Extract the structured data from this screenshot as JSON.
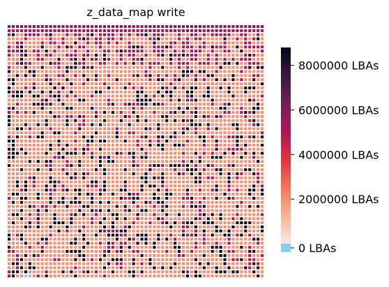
{
  "chart_data": {
    "type": "heatmap",
    "title": "z_data_map write",
    "grid": {
      "rows": 62,
      "cols": 62
    },
    "colorbar": {
      "ticks": [
        {
          "value": 8000000,
          "label": "8000000 LBAs"
        },
        {
          "value": 6000000,
          "label": "6000000 LBAs"
        },
        {
          "value": 4000000,
          "label": "4000000 LBAs"
        },
        {
          "value": 2000000,
          "label": "2000000 LBAs"
        },
        {
          "value": 0,
          "label": "0 LBAs"
        }
      ],
      "range": [
        0,
        8800000
      ],
      "zero_color": "#87ceeb",
      "colormap": [
        "#fae9df",
        "#f6b596",
        "#f1765a",
        "#e13342",
        "#ad1759",
        "#701f57",
        "#3a1a3d",
        "#03051a"
      ]
    },
    "cell_value_levels": {
      "empty": 0,
      "low": 2000000,
      "mid": 5200000,
      "high": 8800000
    }
  }
}
